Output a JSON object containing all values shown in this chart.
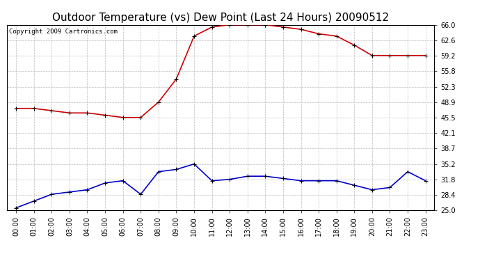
{
  "title": "Outdoor Temperature (vs) Dew Point (Last 24 Hours) 20090512",
  "copyright": "Copyright 2009 Cartronics.com",
  "x_labels": [
    "00:00",
    "01:00",
    "02:00",
    "03:00",
    "04:00",
    "05:00",
    "06:00",
    "07:00",
    "08:00",
    "09:00",
    "10:00",
    "11:00",
    "12:00",
    "13:00",
    "14:00",
    "15:00",
    "16:00",
    "17:00",
    "18:00",
    "19:00",
    "20:00",
    "21:00",
    "22:00",
    "23:00"
  ],
  "temp_data": [
    47.5,
    47.5,
    47.0,
    46.5,
    46.5,
    46.0,
    45.5,
    45.5,
    48.9,
    54.0,
    63.5,
    65.5,
    66.0,
    66.0,
    66.0,
    65.5,
    65.0,
    64.0,
    63.5,
    61.5,
    59.2,
    59.2,
    59.2,
    59.2
  ],
  "dew_data": [
    25.5,
    27.0,
    28.5,
    29.0,
    29.5,
    31.0,
    31.5,
    28.5,
    33.5,
    34.0,
    35.2,
    31.5,
    31.8,
    32.5,
    32.5,
    32.0,
    31.5,
    31.5,
    31.5,
    30.5,
    29.5,
    30.0,
    33.5,
    31.5
  ],
  "ylim": [
    25.0,
    66.0
  ],
  "yticks": [
    25.0,
    28.4,
    31.8,
    35.2,
    38.7,
    42.1,
    45.5,
    48.9,
    52.3,
    55.8,
    59.2,
    62.6,
    66.0
  ],
  "temp_color": "#cc0000",
  "dew_color": "#0000cc",
  "grid_color": "#bbbbbb",
  "bg_color": "#ffffff",
  "plot_bg_color": "#ffffff",
  "title_fontsize": 11,
  "copyright_fontsize": 6.5
}
